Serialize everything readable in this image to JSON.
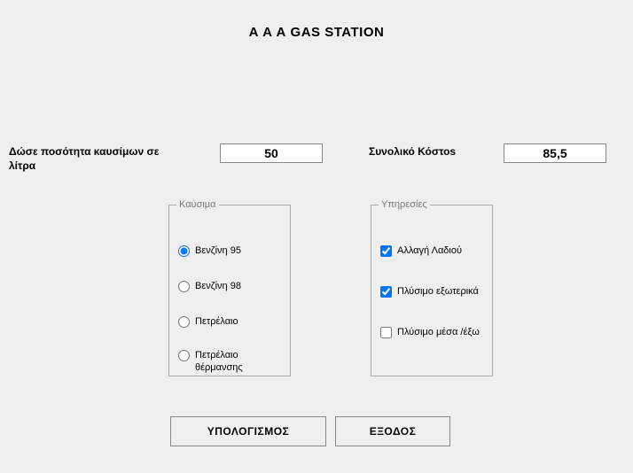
{
  "title": "Α Α Α   GAS STATION",
  "labels": {
    "quantity": "Δώσε  ποσότητα καυσίμων σε λίτρα",
    "total": "Συνολικό Κόστοs"
  },
  "inputs": {
    "quantity_value": "50",
    "total_value": "85,5"
  },
  "groups": {
    "fuel": {
      "legend": "Καύσιμα",
      "options": [
        {
          "label": "Βενζίνη 95",
          "checked": true
        },
        {
          "label": "Βενζίνη 98",
          "checked": false
        },
        {
          "label": "Πετρέλαιο",
          "checked": false
        },
        {
          "label": "Πετρέλαιο θέρμανσης",
          "checked": false
        }
      ]
    },
    "services": {
      "legend": "Υπηρεσίες",
      "options": [
        {
          "label": "Αλλαγή Λαδιού",
          "checked": true
        },
        {
          "label": "Πλύσιμο εξωτερικά",
          "checked": true
        },
        {
          "label": "Πλύσιμο μέσα /έξω",
          "checked": false
        }
      ]
    }
  },
  "buttons": {
    "calculate": "ΥΠΟΛΟΓΙΣΜΟΣ",
    "exit": "ΕΞΟΔΟΣ"
  },
  "style": {
    "background_color": "#efefef",
    "field_bg": "#ffffff",
    "border_color": "#888888",
    "legend_color": "#777777",
    "font_family": "Arial",
    "title_fontsize": 15,
    "label_fontsize": 12,
    "option_fontsize": 11
  }
}
